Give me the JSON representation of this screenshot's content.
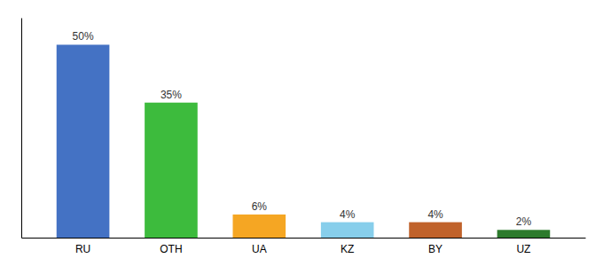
{
  "chart_data": {
    "type": "bar",
    "categories": [
      "RU",
      "OTH",
      "UA",
      "KZ",
      "BY",
      "UZ"
    ],
    "values": [
      50,
      35,
      6,
      4,
      4,
      2
    ],
    "value_labels": [
      "50%",
      "35%",
      "6%",
      "4%",
      "4%",
      "2%"
    ],
    "colors": [
      "#4472c4",
      "#3dbb3d",
      "#f5a623",
      "#87ceeb",
      "#c0622b",
      "#2d7a2d"
    ],
    "ylim": [
      0,
      57
    ],
    "data_labels": true,
    "tick_labels": "x"
  }
}
